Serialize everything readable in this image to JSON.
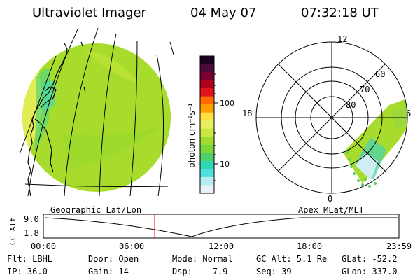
{
  "header": {
    "instrument": "Ultraviolet Imager",
    "date": "04 May 07",
    "time": "07:32:18 UT"
  },
  "colorbar": {
    "unit_label": "photon cm⁻²s⁻¹",
    "ticks": [
      "100",
      "10"
    ],
    "colors": [
      "#1a0022",
      "#4a0a3a",
      "#7a0030",
      "#b0001c",
      "#e0141a",
      "#ff6a00",
      "#ffa000",
      "#ffe040",
      "#e8f060",
      "#c8ea40",
      "#a0dc30",
      "#7ad63a",
      "#50d068",
      "#30d8b0",
      "#50e0e0",
      "#b8ecf0",
      "#e8f2f4"
    ]
  },
  "geo_map": {
    "caption": "Geographic Lat/Lon",
    "fill_color": "#a8dc2c"
  },
  "polar": {
    "caption": "Apex MLat/MLT",
    "mlt_labels": {
      "top": "12",
      "left": "18",
      "right": "6",
      "bottom": "0"
    },
    "lat_labels": [
      "60",
      "70",
      "80"
    ]
  },
  "timeline": {
    "axis_label": "GC Alt",
    "y_ticks": [
      "9.0",
      "1.8"
    ],
    "x_ticks": [
      "00:00",
      "06:00",
      "12:00",
      "18:00",
      "23:59"
    ],
    "marker_color": "#ff0000"
  },
  "footer": {
    "filter": "Flt: LBHL",
    "door": "Door: Open",
    "mode": "Mode: Normal",
    "gc_alt": "GC Alt: 5.1 Re",
    "glat": "GLat: -52.2",
    "ip": "IP: 36.0",
    "gain": "Gain: 14",
    "dsp": "Dsp:   -7.9",
    "seq": "Seq: 39",
    "glon": "GLon: 337.0"
  }
}
